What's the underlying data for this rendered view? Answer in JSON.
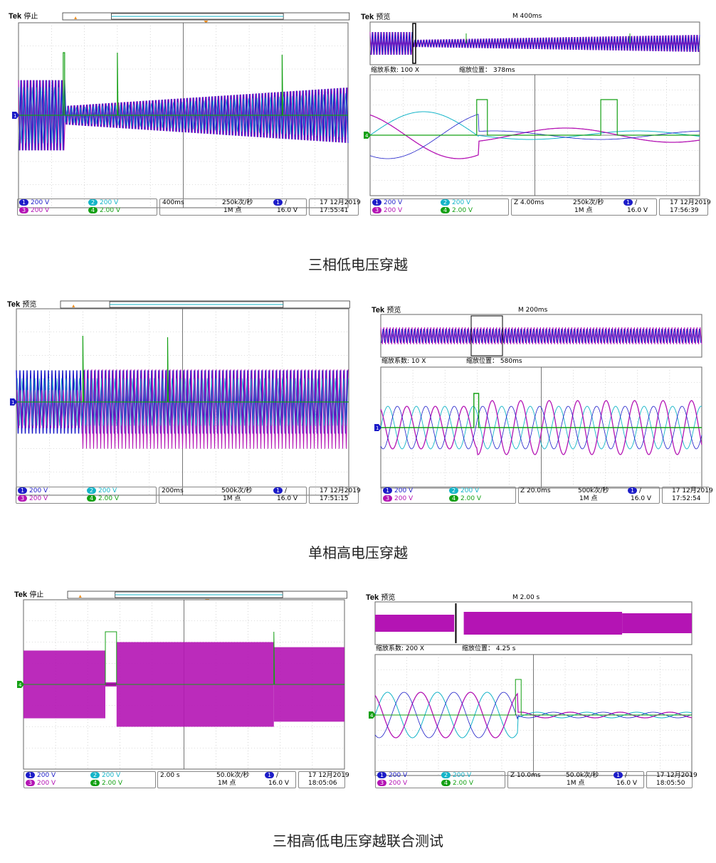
{
  "colors": {
    "ch1": "#1c1cc8",
    "ch2": "#14b4c8",
    "ch3": "#b414b4",
    "ch4": "#14a014"
  },
  "brand": "Tek",
  "channels": {
    "ch1": "200 V",
    "ch2": "200 V",
    "ch3": "200 V",
    "ch4": "2.00 V"
  },
  "sections": [
    {
      "caption": "三相低电压穿越",
      "left": {
        "state": "停止",
        "timebase": "400ms",
        "rate": "250k次/秒",
        "points": "1M 点",
        "trig_level": "16.0 V",
        "date": "17 12月2019",
        "time": "17:55:41"
      },
      "right": {
        "state": "预览",
        "main_timebase": "M 400ms",
        "zoom_factor_label": "缩放系数: 100 X",
        "zoom_pos_label": "缩放位置：",
        "zoom_pos": "378ms",
        "timebase": "Z 4.00ms",
        "rate": "250k次/秒",
        "points": "1M 点",
        "trig_level": "16.0 V",
        "date": "17 12月2019",
        "time": "17:56:39"
      }
    },
    {
      "caption": "单相高电压穿越",
      "left": {
        "state": "预览",
        "timebase": "200ms",
        "rate": "500k次/秒",
        "points": "1M 点",
        "trig_level": "16.0 V",
        "date": "17 12月2019",
        "time": "17:51:15"
      },
      "right": {
        "state": "预览",
        "main_timebase": "M 200ms",
        "zoom_factor_label": "缩放系数: 10 X",
        "zoom_pos_label": "缩放位置：",
        "zoom_pos": "580ms",
        "timebase": "Z 20.0ms",
        "rate": "500k次/秒",
        "points": "1M 点",
        "trig_level": "16.0 V",
        "date": "17 12月2019",
        "time": "17:52:54"
      }
    },
    {
      "caption": "三相高低电压穿越联合测试",
      "left": {
        "state": "停止",
        "timebase": "2.00 s",
        "rate": "50.0k次/秒",
        "points": "1M 点",
        "trig_level": "16.0 V",
        "date": "17 12月2019",
        "time": "18:05:06"
      },
      "right": {
        "state": "预览",
        "main_timebase": "M 2.00 s",
        "zoom_factor_label": "缩放系数: 200 X",
        "zoom_pos_label": "缩放位置：",
        "zoom_pos": "4.25 s",
        "timebase": "Z 10.0ms",
        "rate": "50.0k次/秒",
        "points": "1M 点",
        "trig_level": "16.0 V",
        "date": "17 12月2019",
        "time": "18:05:50"
      }
    }
  ]
}
